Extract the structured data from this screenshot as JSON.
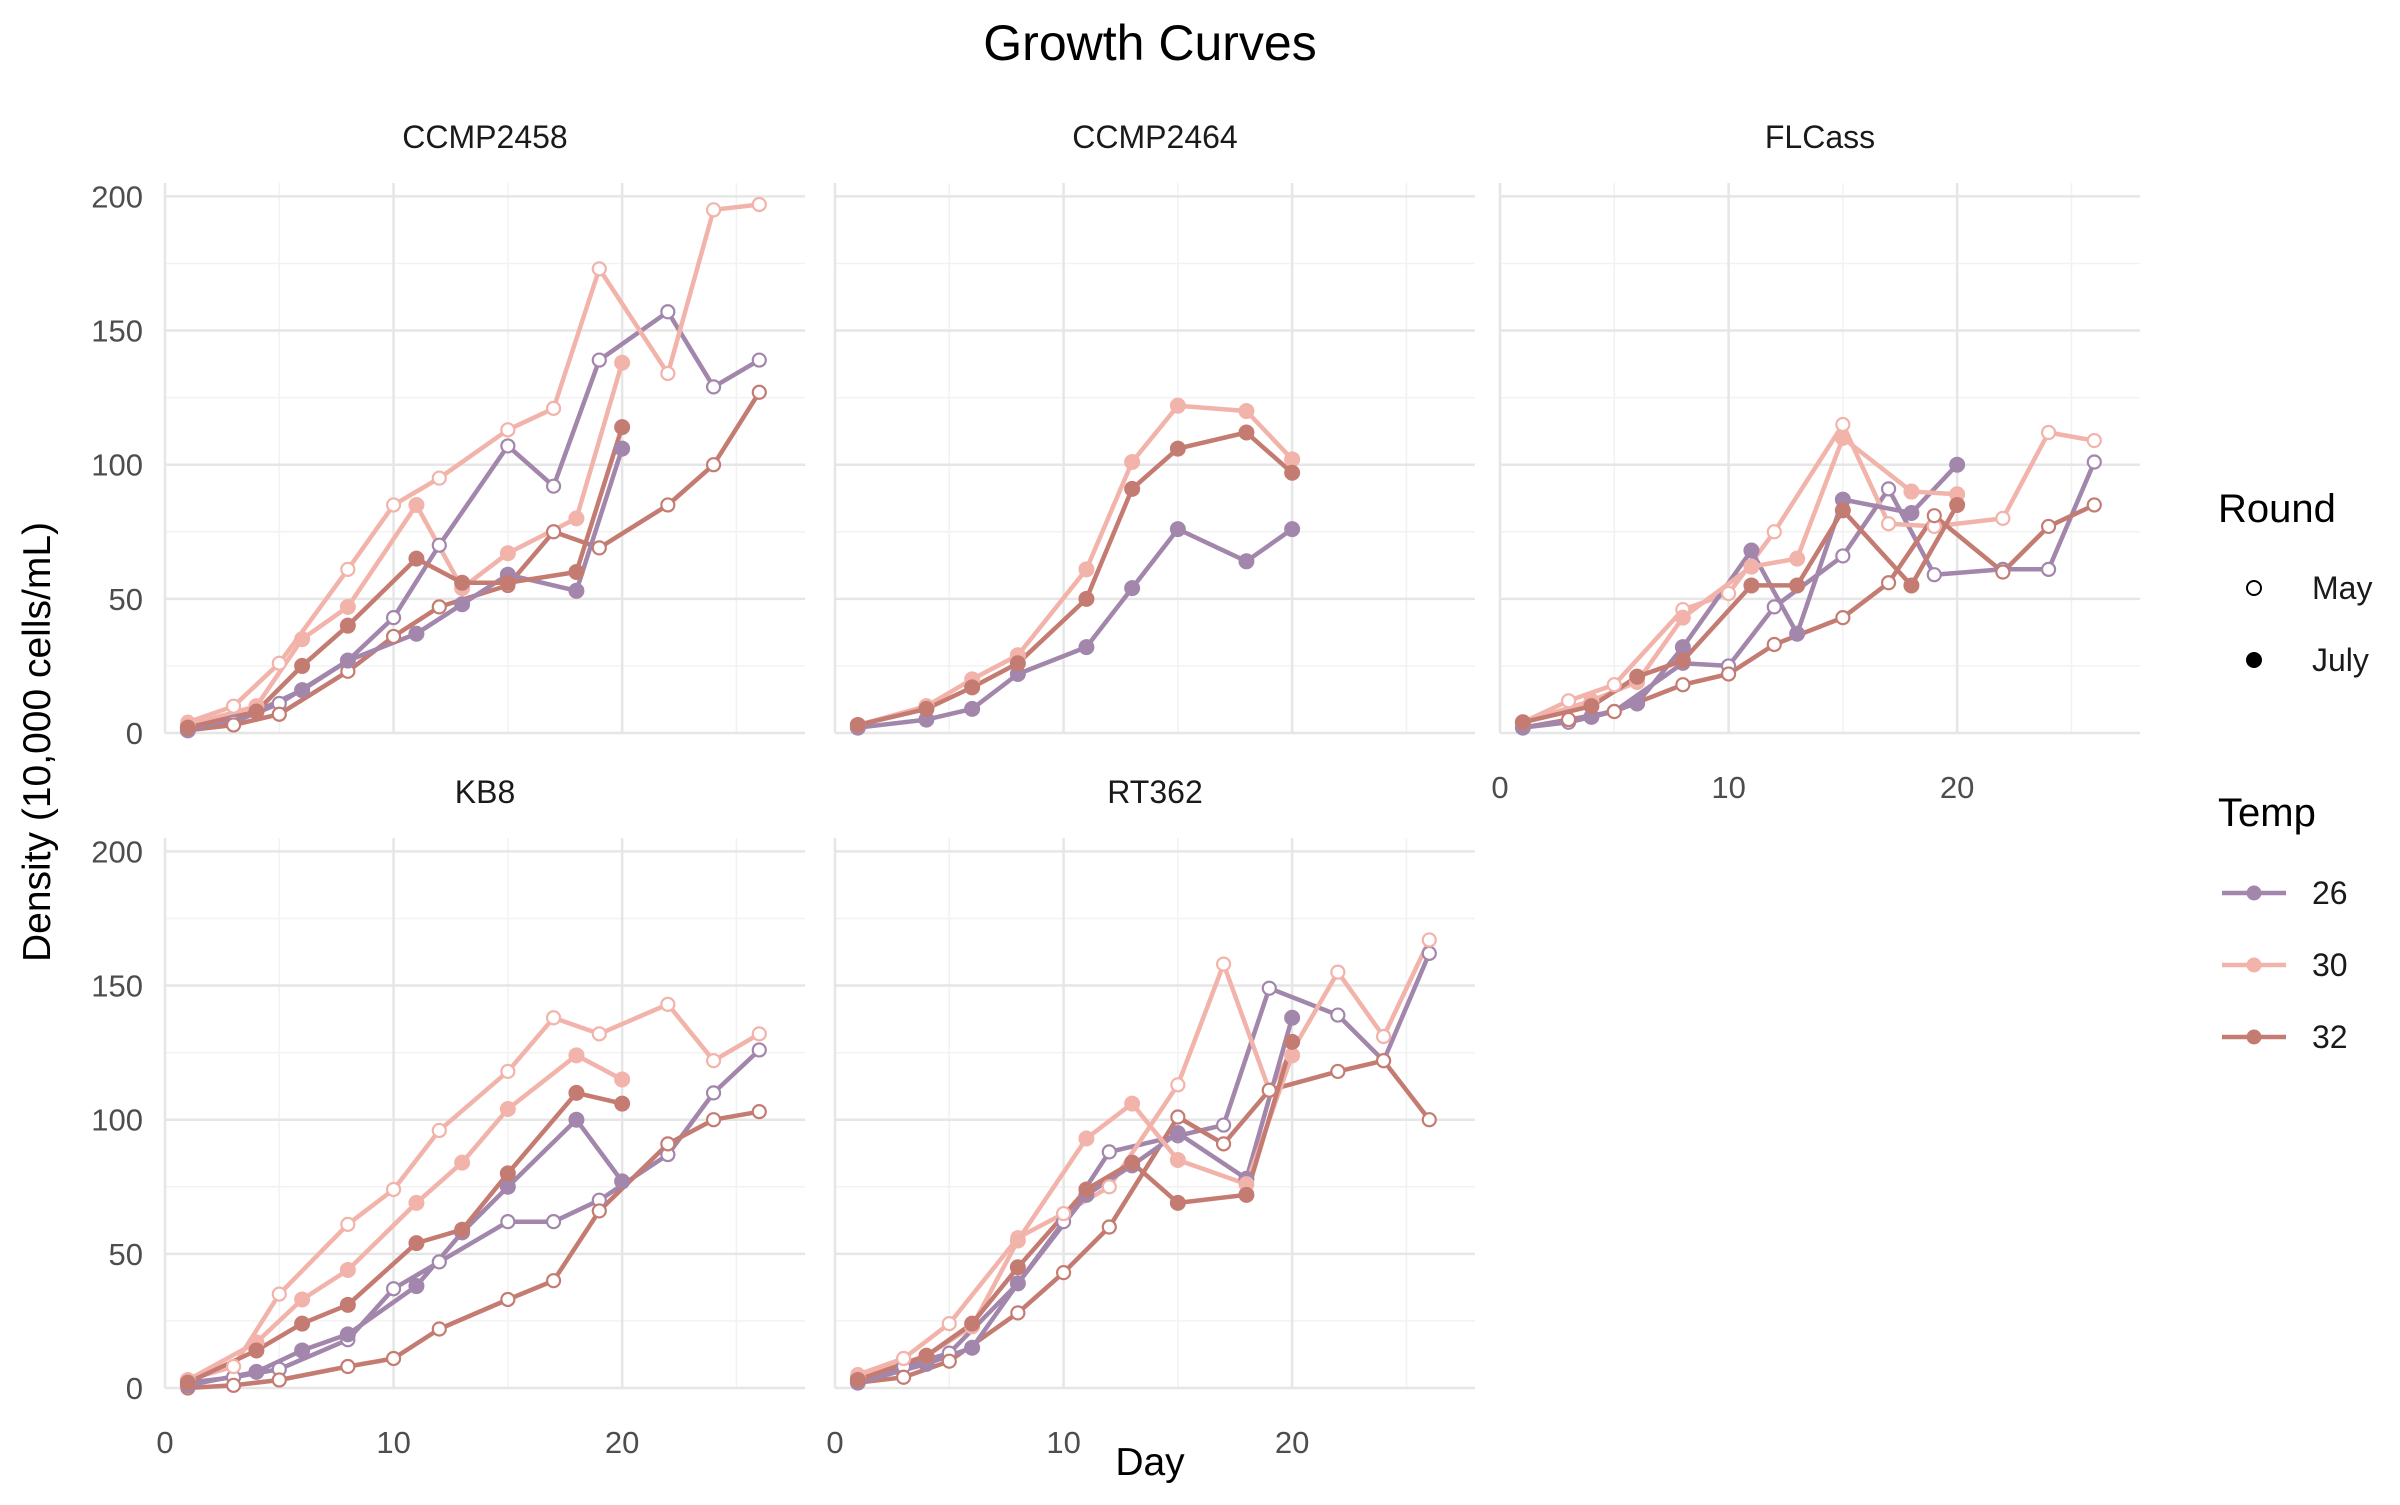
{
  "chart_data": {
    "type": "line",
    "title": "Growth Curves",
    "xlabel": "Day",
    "ylabel": "Density (10,000 cells/mL)",
    "xlim": [
      0,
      28
    ],
    "ylim": [
      0,
      205
    ],
    "x_ticks": [
      0,
      10,
      20
    ],
    "y_ticks": [
      0,
      50,
      100,
      150,
      200
    ],
    "grid": true,
    "legend_position": "right",
    "legends": {
      "round": {
        "title": "Round",
        "entries": [
          {
            "label": "May",
            "shape": "open-circle"
          },
          {
            "label": "July",
            "shape": "filled-circle"
          }
        ]
      },
      "temp": {
        "title": "Temp",
        "entries": [
          {
            "label": "26",
            "color": "#a286ab"
          },
          {
            "label": "30",
            "color": "#f2b3aa"
          },
          {
            "label": "32",
            "color": "#c47c72"
          }
        ]
      }
    },
    "panels": [
      {
        "name": "CCMP2458",
        "series": [
          {
            "round": "May",
            "temp": "26",
            "x": [
              1,
              3,
              5,
              8,
              10,
              12,
              15,
              17,
              19,
              22,
              24,
              26
            ],
            "y": [
              2,
              4,
              11,
              27,
              43,
              70,
              107,
              92,
              139,
              157,
              129,
              139
            ]
          },
          {
            "round": "May",
            "temp": "30",
            "x": [
              1,
              3,
              5,
              8,
              10,
              12,
              15,
              17,
              19,
              22,
              24,
              26
            ],
            "y": [
              4,
              10,
              26,
              61,
              85,
              95,
              113,
              121,
              173,
              134,
              195,
              197
            ]
          },
          {
            "round": "May",
            "temp": "32",
            "x": [
              1,
              3,
              5,
              8,
              10,
              12,
              15,
              17,
              19,
              22,
              24,
              26
            ],
            "y": [
              1,
              3,
              7,
              23,
              36,
              47,
              55,
              75,
              69,
              85,
              100,
              127
            ]
          },
          {
            "round": "July",
            "temp": "26",
            "x": [
              1,
              4,
              6,
              8,
              11,
              13,
              15,
              18,
              20
            ],
            "y": [
              1,
              8,
              16,
              27,
              37,
              48,
              59,
              53,
              106
            ]
          },
          {
            "round": "July",
            "temp": "30",
            "x": [
              1,
              4,
              6,
              8,
              11,
              13,
              15,
              18,
              20
            ],
            "y": [
              3,
              10,
              35,
              47,
              85,
              54,
              67,
              80,
              138
            ]
          },
          {
            "round": "July",
            "temp": "32",
            "x": [
              1,
              4,
              6,
              8,
              11,
              13,
              15,
              18,
              20
            ],
            "y": [
              2,
              8,
              25,
              40,
              65,
              56,
              56,
              60,
              114
            ]
          }
        ]
      },
      {
        "name": "CCMP2464",
        "series": [
          {
            "round": "July",
            "temp": "26",
            "x": [
              1,
              4,
              6,
              8,
              11,
              13,
              15,
              18,
              20
            ],
            "y": [
              2,
              5,
              9,
              22,
              32,
              54,
              76,
              64,
              76
            ]
          },
          {
            "round": "July",
            "temp": "30",
            "x": [
              1,
              4,
              6,
              8,
              11,
              13,
              15,
              18,
              20
            ],
            "y": [
              3,
              10,
              20,
              29,
              61,
              101,
              122,
              120,
              102
            ]
          },
          {
            "round": "July",
            "temp": "32",
            "x": [
              1,
              4,
              6,
              8,
              11,
              13,
              15,
              18,
              20
            ],
            "y": [
              3,
              9,
              17,
              26,
              50,
              91,
              106,
              112,
              97
            ]
          }
        ]
      },
      {
        "name": "FLCass",
        "series": [
          {
            "round": "May",
            "temp": "26",
            "x": [
              1,
              3,
              5,
              8,
              10,
              12,
              15,
              17,
              19,
              22,
              24,
              26
            ],
            "y": [
              2,
              4,
              8,
              26,
              25,
              47,
              66,
              91,
              59,
              61,
              61,
              101
            ]
          },
          {
            "round": "May",
            "temp": "30",
            "x": [
              1,
              3,
              5,
              8,
              10,
              12,
              15,
              17,
              19,
              22,
              24,
              26
            ],
            "y": [
              4,
              12,
              18,
              46,
              52,
              75,
              115,
              78,
              77,
              80,
              112,
              109
            ]
          },
          {
            "round": "May",
            "temp": "32",
            "x": [
              1,
              3,
              5,
              8,
              10,
              12,
              15,
              17,
              19,
              22,
              24,
              26
            ],
            "y": [
              2,
              5,
              8,
              18,
              22,
              33,
              43,
              56,
              81,
              60,
              77,
              85
            ]
          },
          {
            "round": "July",
            "temp": "26",
            "x": [
              1,
              4,
              6,
              8,
              11,
              13,
              15,
              18,
              20
            ],
            "y": [
              2,
              6,
              11,
              32,
              68,
              37,
              87,
              82,
              100
            ]
          },
          {
            "round": "July",
            "temp": "30",
            "x": [
              1,
              4,
              6,
              8,
              11,
              13,
              15,
              18,
              20
            ],
            "y": [
              4,
              12,
              19,
              43,
              62,
              65,
              110,
              90,
              89
            ]
          },
          {
            "round": "July",
            "temp": "32",
            "x": [
              1,
              4,
              6,
              8,
              11,
              13,
              15,
              18,
              20
            ],
            "y": [
              4,
              10,
              21,
              27,
              55,
              55,
              83,
              55,
              85
            ]
          }
        ]
      },
      {
        "name": "KB8",
        "series": [
          {
            "round": "May",
            "temp": "26",
            "x": [
              1,
              3,
              5,
              8,
              10,
              12,
              15,
              17,
              19,
              22,
              24,
              26
            ],
            "y": [
              2,
              4,
              7,
              18,
              37,
              47,
              62,
              62,
              70,
              87,
              110,
              126
            ]
          },
          {
            "round": "May",
            "temp": "30",
            "x": [
              1,
              3,
              5,
              8,
              10,
              12,
              15,
              17,
              19,
              22,
              24,
              26
            ],
            "y": [
              3,
              8,
              35,
              61,
              74,
              96,
              118,
              138,
              132,
              143,
              122,
              132
            ]
          },
          {
            "round": "May",
            "temp": "32",
            "x": [
              1,
              3,
              5,
              8,
              10,
              12,
              15,
              17,
              19,
              22,
              24,
              26
            ],
            "y": [
              0,
              1,
              3,
              8,
              11,
              22,
              33,
              40,
              66,
              91,
              100,
              103
            ]
          },
          {
            "round": "July",
            "temp": "26",
            "x": [
              1,
              4,
              6,
              8,
              11,
              13,
              15,
              18,
              20
            ],
            "y": [
              1,
              6,
              14,
              20,
              38,
              58,
              75,
              100,
              77
            ]
          },
          {
            "round": "July",
            "temp": "30",
            "x": [
              1,
              4,
              6,
              8,
              11,
              13,
              15,
              18,
              20
            ],
            "y": [
              3,
              17,
              33,
              44,
              69,
              84,
              104,
              124,
              115
            ]
          },
          {
            "round": "July",
            "temp": "32",
            "x": [
              1,
              4,
              6,
              8,
              11,
              13,
              15,
              18,
              20
            ],
            "y": [
              2,
              14,
              24,
              31,
              54,
              59,
              80,
              110,
              106
            ]
          }
        ]
      },
      {
        "name": "RT362",
        "series": [
          {
            "round": "May",
            "temp": "26",
            "x": [
              1,
              3,
              5,
              8,
              10,
              12,
              15,
              17,
              19,
              22,
              24,
              26
            ],
            "y": [
              3,
              8,
              13,
              39,
              62,
              88,
              94,
              98,
              149,
              139,
              122,
              162
            ]
          },
          {
            "round": "May",
            "temp": "30",
            "x": [
              1,
              3,
              5,
              8,
              10,
              12,
              15,
              17,
              19,
              22,
              24,
              26
            ],
            "y": [
              5,
              11,
              24,
              56,
              65,
              75,
              113,
              158,
              111,
              155,
              131,
              167
            ]
          },
          {
            "round": "May",
            "temp": "32",
            "x": [
              1,
              3,
              5,
              8,
              10,
              12,
              15,
              17,
              19,
              22,
              24,
              26
            ],
            "y": [
              2,
              4,
              10,
              28,
              43,
              60,
              101,
              91,
              111,
              118,
              122,
              100
            ]
          },
          {
            "round": "July",
            "temp": "26",
            "x": [
              1,
              4,
              6,
              8,
              11,
              13,
              15,
              18,
              20
            ],
            "y": [
              2,
              9,
              15,
              39,
              72,
              83,
              95,
              78,
              138
            ]
          },
          {
            "round": "July",
            "temp": "30",
            "x": [
              1,
              4,
              6,
              8,
              11,
              13,
              15,
              18,
              20
            ],
            "y": [
              4,
              12,
              23,
              55,
              93,
              106,
              85,
              76,
              124
            ]
          },
          {
            "round": "July",
            "temp": "32",
            "x": [
              1,
              4,
              6,
              8,
              11,
              13,
              15,
              18,
              20
            ],
            "y": [
              3,
              12,
              24,
              45,
              74,
              84,
              69,
              72,
              129
            ]
          }
        ]
      }
    ]
  }
}
